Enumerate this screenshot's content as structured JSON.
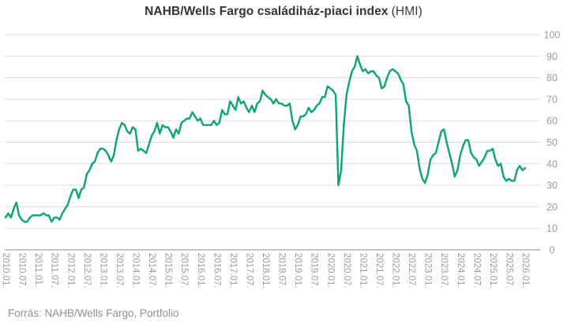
{
  "title": {
    "main": "NAHB/Wells Fargo családiház-piaci index",
    "suffix": "(HMI)"
  },
  "source": "Forrás: NAHB/Wells Fargo, Portfolio",
  "colors": {
    "line": "#0ca377",
    "grid": "#dddddd",
    "axis": "#888888",
    "tick_label": "#9b9b9b",
    "title": "#333333",
    "source": "#8f8f8f",
    "background": "#ffffff"
  },
  "chart_data": {
    "type": "line",
    "title": "NAHB/Wells Fargo családiház-piaci index (HMI)",
    "xlabel": "",
    "ylabel": "",
    "ylim": [
      0,
      100
    ],
    "yticks": [
      0,
      10,
      20,
      30,
      40,
      50,
      60,
      70,
      80,
      90,
      100
    ],
    "grid": true,
    "legend": false,
    "y_axis_side": "right",
    "x_label_rotation_deg": 90,
    "x_start": "2010.01.",
    "x_interval": "monthly",
    "x_tick_every_months": 6,
    "x_tick_labels": [
      "2010.01.",
      "2010.07.",
      "2011.01.",
      "2011.07.",
      "2012.01.",
      "2012.07.",
      "2013.01.",
      "2013.07.",
      "2014.01.",
      "2014.07.",
      "2015.01.",
      "2015.07.",
      "2016.01.",
      "2016.07.",
      "2017.01.",
      "2017.07.",
      "2018.01.",
      "2018.07.",
      "2019.01.",
      "2019.07.",
      "2020.01.",
      "2020.07.",
      "2021.01.",
      "2021.07.",
      "2022.01.",
      "2022.07.",
      "2023.01.",
      "2023.07.",
      "2024.01.",
      "2024.07.",
      "2025.01.",
      "2025.07.",
      "2026.01."
    ],
    "series": [
      {
        "name": "HMI",
        "values": [
          15,
          17,
          15,
          19,
          22,
          16,
          14,
          13,
          13,
          15,
          16,
          16,
          16,
          16,
          17,
          16,
          16,
          13,
          15,
          15,
          14,
          17,
          19,
          21,
          25,
          28,
          28,
          24,
          28,
          29,
          35,
          37,
          40,
          41,
          45,
          47,
          47,
          46,
          44,
          41,
          44,
          51,
          56,
          59,
          58,
          55,
          54,
          57,
          56,
          46,
          47,
          46,
          45,
          49,
          53,
          55,
          59,
          54,
          58,
          57,
          57,
          55,
          52,
          56,
          54,
          59,
          60,
          61,
          61,
          64,
          62,
          60,
          61,
          58,
          58,
          58,
          58,
          60,
          58,
          59,
          65,
          63,
          63,
          69,
          67,
          65,
          71,
          68,
          69,
          66,
          64,
          67,
          64,
          68,
          69,
          74,
          72,
          71,
          70,
          68,
          70,
          68,
          68,
          67,
          67,
          68,
          60,
          56,
          58,
          62,
          62,
          63,
          66,
          64,
          65,
          67,
          68,
          71,
          71,
          76,
          75,
          74,
          72,
          30,
          37,
          58,
          72,
          78,
          83,
          85,
          90,
          86,
          83,
          84,
          82,
          83,
          83,
          81,
          80,
          75,
          76,
          80,
          83,
          84,
          83,
          82,
          79,
          77,
          69,
          67,
          55,
          49,
          46,
          38,
          33,
          31,
          35,
          42,
          44,
          45,
          50,
          55,
          56,
          50,
          45,
          40,
          34,
          37,
          44,
          48,
          51,
          51,
          45,
          43,
          42,
          39,
          41,
          43,
          46,
          46,
          47,
          42,
          39,
          40,
          34,
          32,
          33,
          32,
          32,
          37,
          39,
          37,
          38
        ]
      }
    ]
  }
}
